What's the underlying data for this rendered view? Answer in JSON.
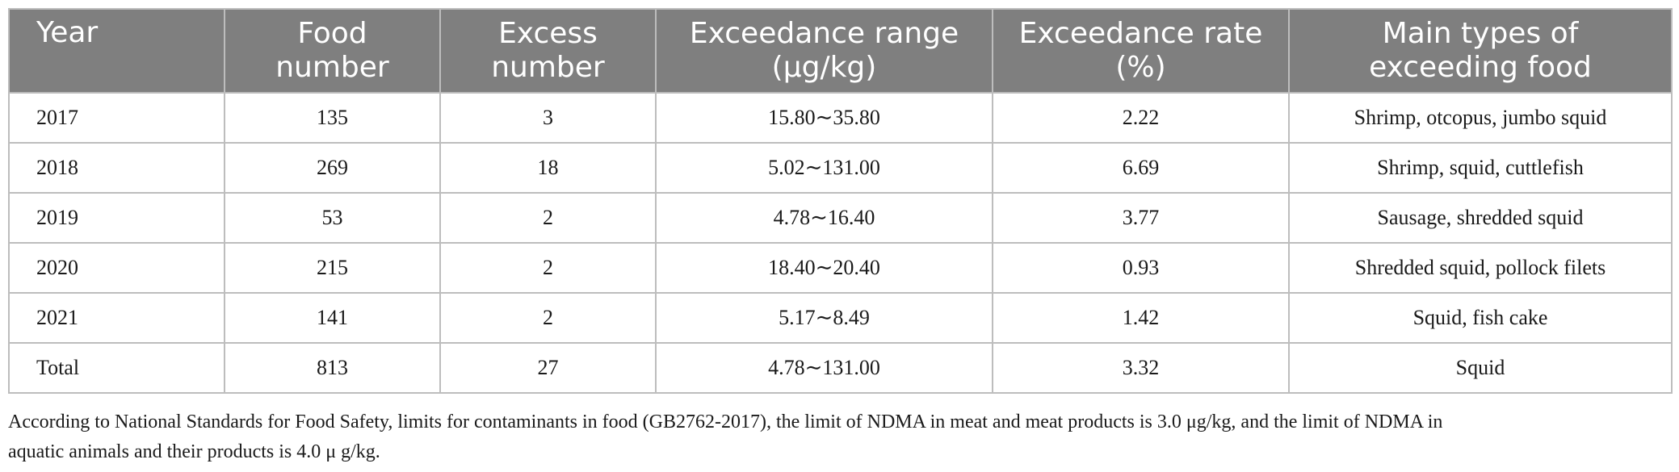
{
  "table": {
    "headers": [
      [
        "Year"
      ],
      [
        "Food",
        "number"
      ],
      [
        "Excess",
        "number"
      ],
      [
        "Exceedance range",
        "(μg/kg)"
      ],
      [
        "Exceedance rate",
        "(%)"
      ],
      [
        "Main types of",
        "exceeding food"
      ]
    ],
    "rows": [
      [
        "2017",
        "135",
        "3",
        "15.80∼35.80",
        "2.22",
        "Shrimp, otcopus, jumbo squid"
      ],
      [
        "2018",
        "269",
        "18",
        "5.02∼131.00",
        "6.69",
        "Shrimp, squid, cuttlefish"
      ],
      [
        "2019",
        "53",
        "2",
        "4.78∼16.40",
        "3.77",
        "Sausage, shredded squid"
      ],
      [
        "2020",
        "215",
        "2",
        "18.40∼20.40",
        "0.93",
        "Shredded squid, pollock filets"
      ],
      [
        "2021",
        "141",
        "2",
        "5.17∼8.49",
        "1.42",
        "Squid, fish cake"
      ],
      [
        "Total",
        "813",
        "27",
        "4.78∼131.00",
        "3.32",
        "Squid"
      ]
    ]
  },
  "footnote": {
    "line1": "According to National Standards for Food Safety, limits for contaminants in food (GB2762-2017), the limit of NDMA in meat and meat products is 3.0 μg/kg, and the limit of NDMA in",
    "line2": "aquatic animals and their products is 4.0 μ g/kg."
  }
}
